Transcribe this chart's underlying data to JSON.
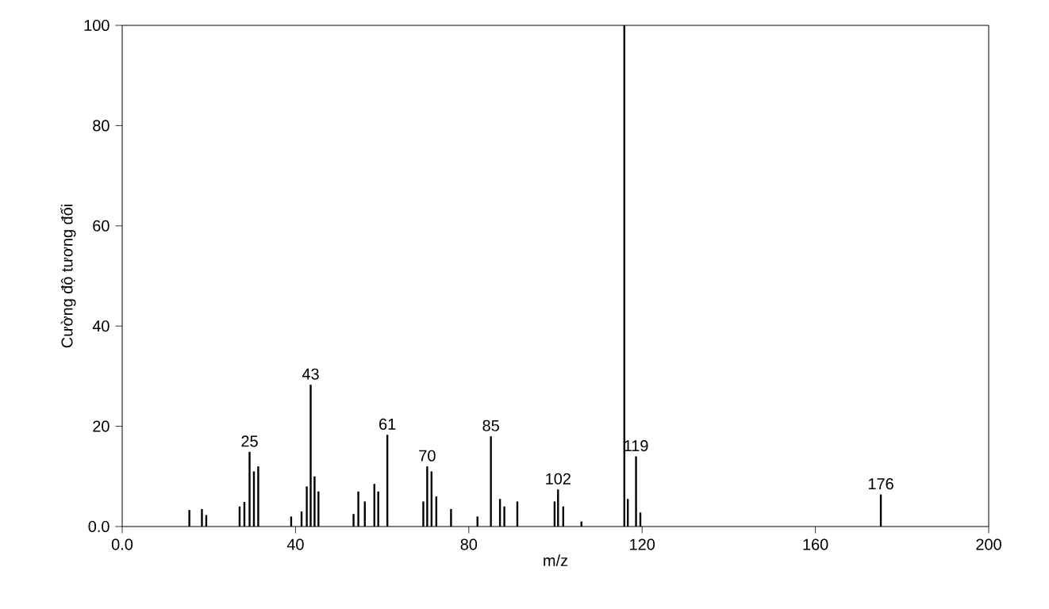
{
  "chart_data": {
    "type": "bar",
    "xlabel": "m/z",
    "ylabel": "Cường độ tương đối",
    "x": [
      15.5,
      18.4,
      19.4,
      27.1,
      28.2,
      29.4,
      30.4,
      31.4,
      39,
      41.4,
      42.6,
      43.5,
      44.4,
      45.3,
      53.4,
      54.5,
      56,
      58.2,
      59.1,
      61.2,
      69.5,
      70.4,
      71.4,
      72.5,
      75.9,
      82,
      85.1,
      87.2,
      88.2,
      91.2,
      99.8,
      100.6,
      101.8,
      106,
      115.9,
      116.7,
      118.6,
      119.6,
      175.1
    ],
    "values": [
      3.3,
      3.5,
      2.3,
      4,
      4.9,
      14.9,
      11,
      12,
      2,
      3,
      8,
      28.3,
      10,
      7,
      2.5,
      7,
      5,
      8.5,
      7,
      18.3,
      5,
      12,
      11,
      6,
      3.5,
      2,
      18,
      5.5,
      4,
      5,
      5,
      7.4,
      4,
      1,
      100,
      5.5,
      14,
      2.8,
      6.4
    ],
    "color": "#000000",
    "xlim": [
      0,
      200
    ],
    "ylim": [
      0,
      100
    ],
    "xticks": [
      {
        "value": 0,
        "label": "0.0"
      },
      40,
      80,
      120,
      160,
      200
    ],
    "yticks": [
      {
        "value": 0,
        "label": "0.0"
      },
      20,
      40,
      60,
      80,
      100
    ],
    "grid": false,
    "annotations": [
      {
        "text": "25",
        "x": 29.4,
        "y": 14.9
      },
      {
        "text": "43",
        "x": 43.5,
        "y": 28.3
      },
      {
        "text": "61",
        "x": 61.2,
        "y": 18.3
      },
      {
        "text": "70",
        "x": 70.4,
        "y": 12
      },
      {
        "text": "85",
        "x": 85.1,
        "y": 18
      },
      {
        "text": "102",
        "x": 100.6,
        "y": 7.4
      },
      {
        "text": "119",
        "x": 118.6,
        "y": 14
      },
      {
        "text": "176",
        "x": 175.1,
        "y": 6.4
      }
    ]
  }
}
